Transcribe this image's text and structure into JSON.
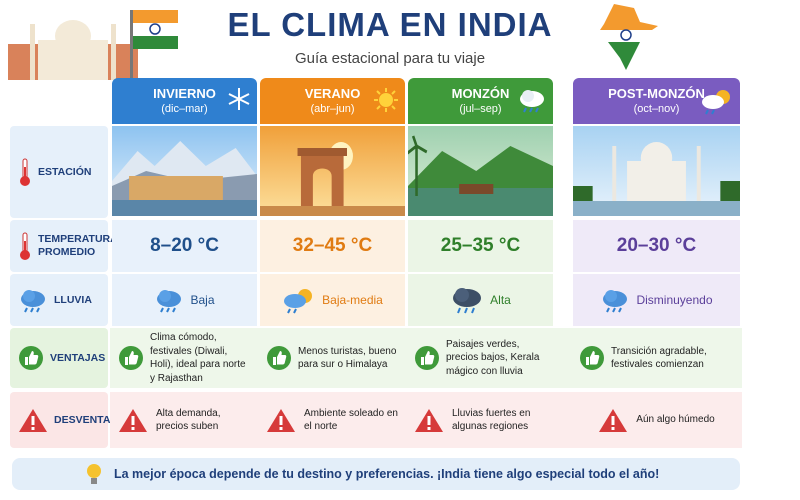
{
  "header": {
    "title": "EL CLIMA EN INDIA",
    "subtitle": "Guía estacional para tu viaje"
  },
  "table": {
    "columns": [
      {
        "name": "INVIERNO",
        "range": "(dic–mar)"
      },
      {
        "name": "VERANO",
        "range": "(abr–jun)"
      },
      {
        "name": "MONZÓN",
        "range": "(jul–sep)"
      },
      {
        "name": "POST-MONZÓN",
        "range": "(oct–nov)"
      }
    ],
    "row_labels": [
      "ESTACIÓN",
      "TEMPERATURA PROMEDIO",
      "LLUVIA",
      "VENTAJAS",
      "DESVENTAJAS"
    ],
    "temperature": [
      "8–20 °C",
      "32–45 °C",
      "25–35 °C",
      "20–30 °C"
    ],
    "rain": [
      "Baja",
      "Baja-media",
      "Alta",
      "Disminuyendo"
    ],
    "pros": [
      "Clima cómodo, festivales (Diwali, Holi), ideal para norte y Rajasthan",
      "Menos turistas, bueno para sur o Himalaya",
      "Paisajes verdes, precios bajos, Kerala mágico con lluvia",
      "Transición agradable, festivales comienzan"
    ],
    "cons": [
      "Alta demanda, precios suben",
      "Ambiente soleado en el norte",
      "Lluvias fuertes en algunas regiones",
      "Aún algo húmedo"
    ]
  },
  "footer": "La mejor época depende de tu destino y preferencias. ¡India tiene algo especial todo el año!"
}
